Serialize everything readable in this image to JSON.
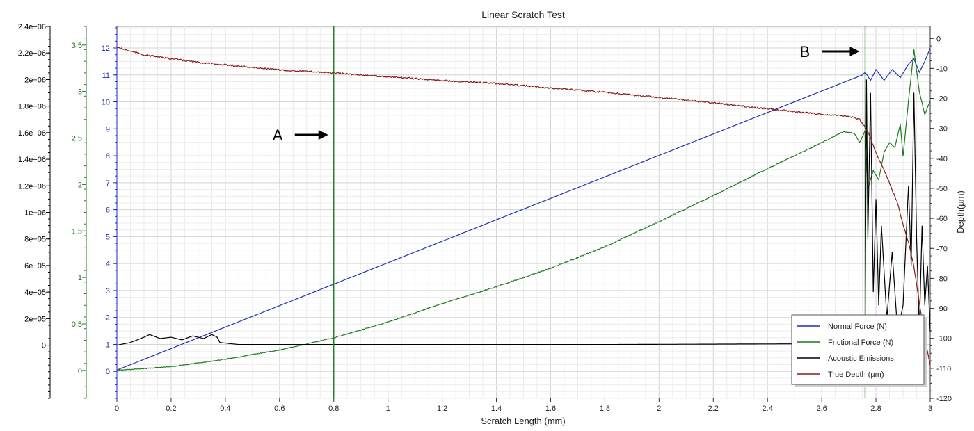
{
  "chart_data": {
    "type": "line",
    "title": "Linear Scratch Test",
    "xlabel": "Scratch Length (mm)",
    "ylabel_right": "Depth(µm)",
    "xlim": [
      0,
      3
    ],
    "x_ticks": [
      "0",
      "0.2",
      "0.4",
      "0.6",
      "0.8",
      "1",
      "1.2",
      "1.4",
      "1.6",
      "1.8",
      "2",
      "2.2",
      "2.4",
      "2.6",
      "2.8",
      "3"
    ],
    "grid": true,
    "legend_position": "bottom-right",
    "axes": {
      "acoustic": {
        "range": [
          -400000,
          2400000
        ],
        "color": "#000000",
        "ticks": [
          "0",
          "2e+05",
          "4e+05",
          "6e+05",
          "8e+05",
          "1e+06",
          "1.2e+06",
          "1.4e+06",
          "1.6e+06",
          "1.8e+06",
          "2e+06",
          "2.2e+06",
          "2.4e+06"
        ]
      },
      "frictional": {
        "range": [
          -0.3,
          3.7
        ],
        "color": "#1a7a1a",
        "ticks": [
          "0",
          "0.5",
          "1",
          "1.5",
          "2",
          "2.5",
          "3",
          "3.5"
        ]
      },
      "normal": {
        "range": [
          -1,
          12.8
        ],
        "color": "#1f2fb5",
        "ticks": [
          "0",
          "1",
          "2",
          "3",
          "4",
          "5",
          "6",
          "7",
          "8",
          "9",
          "10",
          "11",
          "12"
        ]
      },
      "depth": {
        "range": [
          -120,
          4
        ],
        "color": "#222222",
        "ticks": [
          "0",
          "-10",
          "-20",
          "-30",
          "-40",
          "-50",
          "-60",
          "-70",
          "-80",
          "-90",
          "-100",
          "-110",
          "-120"
        ]
      }
    },
    "series": [
      {
        "name": "Normal Force (N)",
        "axis": "normal",
        "color": "#1f2fb5",
        "x": [
          0,
          2.75,
          2.76,
          2.78,
          2.8,
          2.83,
          2.86,
          2.89,
          2.92,
          2.94,
          2.96,
          2.98,
          3.0
        ],
        "y": [
          0.05,
          11.0,
          11.1,
          10.8,
          11.2,
          10.8,
          11.2,
          10.9,
          11.4,
          11.6,
          11.1,
          11.5,
          12.0
        ]
      },
      {
        "name": "Frictional Force (N)",
        "axis": "frictional",
        "color": "#1a7a1a",
        "x": [
          0,
          0.2,
          0.4,
          0.6,
          0.8,
          1.0,
          1.2,
          1.4,
          1.6,
          1.8,
          2.0,
          2.2,
          2.4,
          2.6,
          2.68,
          2.72,
          2.74,
          2.76,
          2.77,
          2.79,
          2.81,
          2.83,
          2.85,
          2.87,
          2.89,
          2.9,
          2.92,
          2.94,
          2.96,
          2.98,
          3.0
        ],
        "y": [
          0,
          0.04,
          0.12,
          0.22,
          0.35,
          0.52,
          0.72,
          0.9,
          1.1,
          1.33,
          1.6,
          1.88,
          2.17,
          2.45,
          2.57,
          2.55,
          2.45,
          2.58,
          1.95,
          2.15,
          2.05,
          2.35,
          2.45,
          2.4,
          2.65,
          2.3,
          2.9,
          3.45,
          3.0,
          2.75,
          2.9
        ]
      },
      {
        "name": "Acoustic Emissions",
        "axis": "acoustic",
        "color": "#000000",
        "x": [
          0,
          0.05,
          0.1,
          0.12,
          0.16,
          0.2,
          0.24,
          0.28,
          0.32,
          0.35,
          0.37,
          0.38,
          0.45,
          1.8,
          2.5,
          2.76,
          2.765,
          2.77,
          2.78,
          2.79,
          2.8,
          2.81,
          2.82,
          2.84,
          2.86,
          2.88,
          2.9,
          2.92,
          2.93,
          2.94,
          2.95,
          2.96,
          2.97,
          2.98,
          2.99,
          3.0
        ],
        "y": [
          0,
          20000,
          60000,
          80000,
          50000,
          60000,
          40000,
          70000,
          50000,
          80000,
          60000,
          20000,
          5000,
          5000,
          10000,
          20000,
          2000000,
          800000,
          1900000,
          400000,
          1100000,
          300000,
          900000,
          200000,
          700000,
          100000,
          300000,
          1200000,
          600000,
          1900000,
          800000,
          100000,
          900000,
          300000,
          600000,
          100000
        ]
      },
      {
        "name": "True Depth (µm)",
        "axis": "depth",
        "color": "#8b1a1a",
        "x": [
          0,
          0.1,
          0.3,
          0.6,
          0.8,
          1.0,
          1.2,
          1.4,
          1.6,
          1.8,
          2.0,
          2.2,
          2.4,
          2.6,
          2.7,
          2.74,
          2.77,
          2.8,
          2.84,
          2.88,
          2.9,
          2.92,
          2.94,
          2.96,
          2.98,
          3.0
        ],
        "y": [
          -3,
          -5.5,
          -8,
          -10.5,
          -11.5,
          -12.8,
          -14,
          -15,
          -16.5,
          -18,
          -19.7,
          -21.5,
          -23.5,
          -25.3,
          -26,
          -27,
          -31,
          -38,
          -46,
          -55,
          -62,
          -68,
          -76,
          -88,
          -100,
          -109
        ]
      }
    ],
    "annotations": [
      {
        "text": "A",
        "x": 0.8,
        "arrow": "right",
        "vline": true
      },
      {
        "text": "B",
        "x": 2.76,
        "arrow": "right",
        "vline": true
      }
    ]
  }
}
